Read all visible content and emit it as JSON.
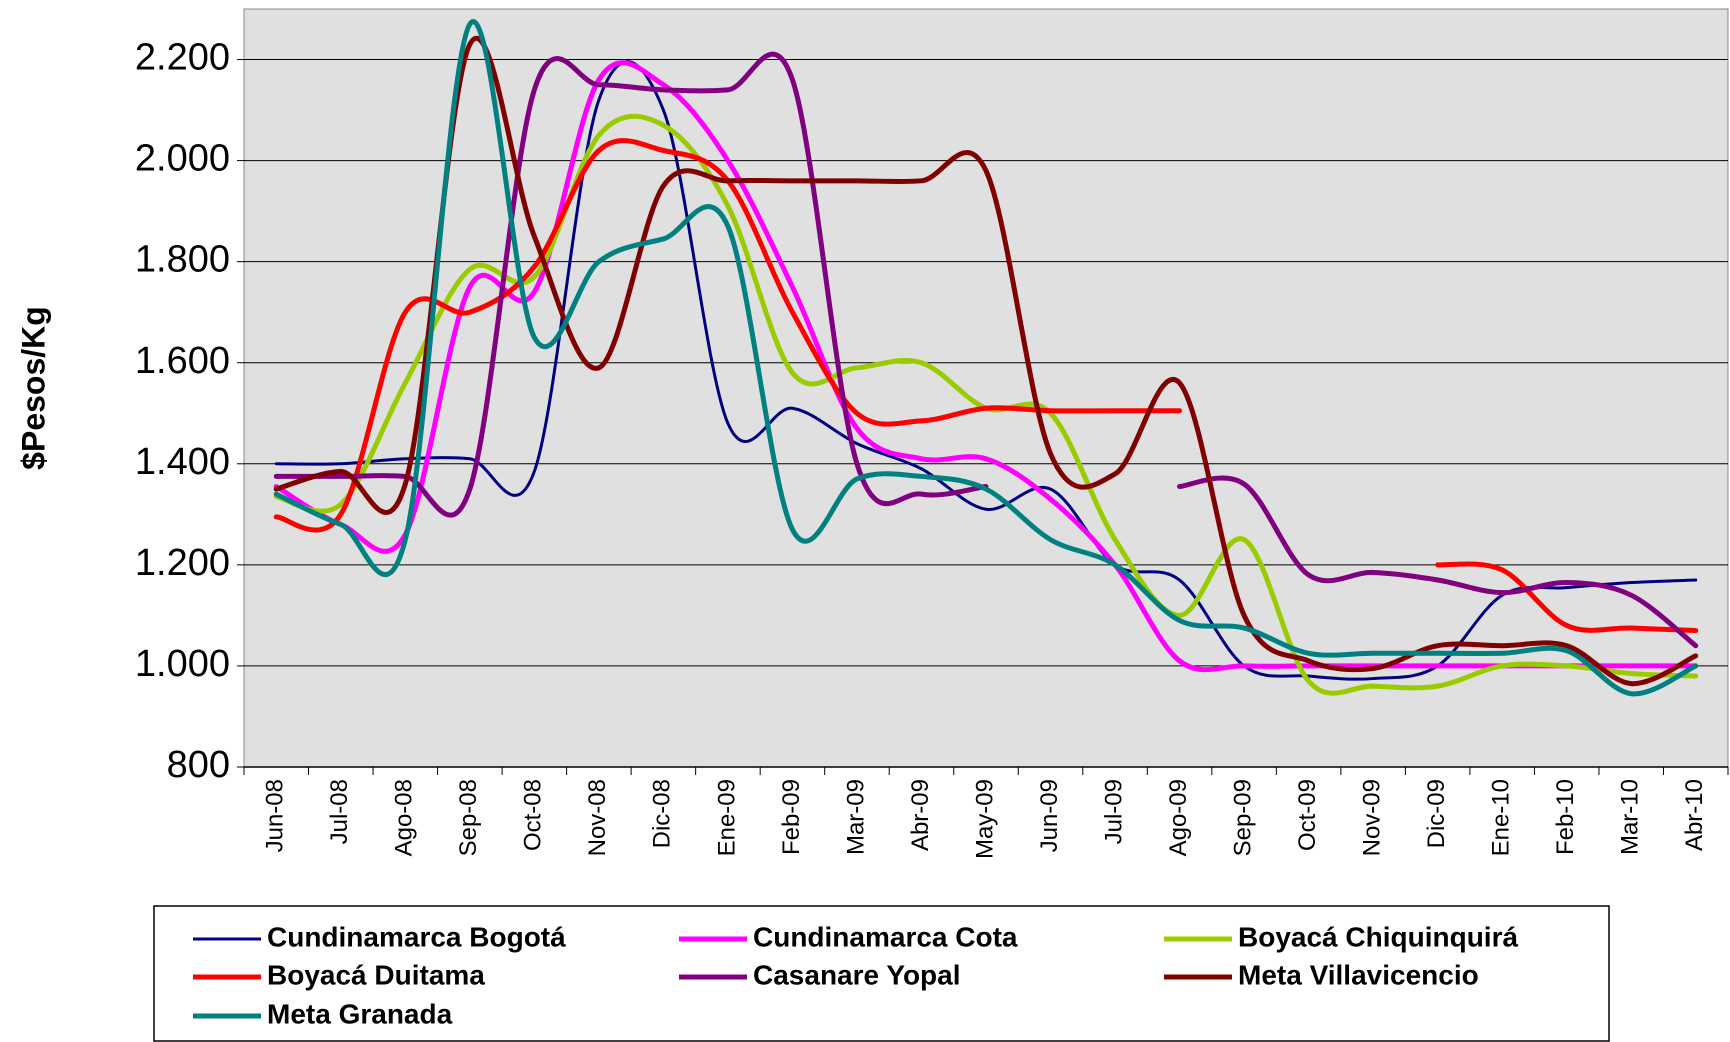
{
  "chart_data": {
    "type": "line",
    "ylabel": "$Pesos/Kg",
    "categories": [
      "Jun-08",
      "Jul-08",
      "Ago-08",
      "Sep-08",
      "Oct-08",
      "Nov-08",
      "Dic-08",
      "Ene-09",
      "Feb-09",
      "Mar-09",
      "Abr-09",
      "May-09",
      "Jun-09",
      "Jul-09",
      "Ago-09",
      "Sep-09",
      "Oct-09",
      "Nov-09",
      "Dic-09",
      "Ene-10",
      "Feb-10",
      "Mar-10",
      "Abr-10"
    ],
    "series": [
      {
        "name": "Cundinamarca Bogotá",
        "color": "#000080",
        "values": [
          1400,
          1400,
          1410,
          1410,
          1385,
          2120,
          2100,
          1480,
          1510,
          1440,
          1390,
          1310,
          1350,
          1200,
          1170,
          1000,
          980,
          975,
          1000,
          1140,
          1155,
          1165,
          1170
        ]
      },
      {
        "name": "Cundinamarca Cota",
        "color": "#ff00ff",
        "values": [
          1355,
          1280,
          1260,
          1750,
          1740,
          2160,
          2150,
          2000,
          1750,
          1470,
          1410,
          1410,
          1330,
          1200,
          1010,
          1000,
          1000,
          1000,
          1000,
          1000,
          1000,
          1000,
          1000
        ]
      },
      {
        "name": "Boyacá Chiquinquirá",
        "color": "#99cc00",
        "values": [
          1335,
          1320,
          1560,
          1785,
          1770,
          2050,
          2070,
          1910,
          1580,
          1590,
          1600,
          1510,
          1500,
          1250,
          1100,
          1250,
          970,
          960,
          960,
          1000,
          1000,
          985,
          980
        ]
      },
      {
        "name": "Boyacá Duitama",
        "color": "#ff0000",
        "values": [
          1295,
          1300,
          1700,
          1700,
          1790,
          2020,
          2020,
          1960,
          1700,
          1500,
          1485,
          1510,
          1505,
          1505,
          1505,
          null,
          null,
          null,
          1200,
          1190,
          1080,
          1075,
          1070
        ]
      },
      {
        "name": "Casanare Yopal",
        "color": "#800080",
        "values": [
          1375,
          1375,
          1375,
          1350,
          2140,
          2150,
          2140,
          2140,
          2160,
          1400,
          1340,
          1355,
          null,
          null,
          1355,
          1360,
          1180,
          1185,
          1170,
          1145,
          1165,
          1140,
          1040
        ]
      },
      {
        "name": "Meta Villavicencio",
        "color": "#800000",
        "values": [
          1350,
          1385,
          1360,
          2230,
          1850,
          1590,
          1950,
          1960,
          1960,
          1960,
          1960,
          1980,
          1420,
          1380,
          1560,
          1100,
          1010,
          995,
          1040,
          1040,
          1040,
          965,
          1020
        ]
      },
      {
        "name": "Meta Granada",
        "color": "#008080",
        "values": [
          1340,
          1280,
          1250,
          2270,
          1650,
          1800,
          1845,
          1870,
          1270,
          1370,
          1375,
          1350,
          1250,
          1200,
          1090,
          1075,
          1025,
          1025,
          1025,
          1025,
          1030,
          945,
          1000
        ]
      }
    ],
    "ylim": [
      800,
      2300
    ],
    "yticks": [
      {
        "value": 800,
        "label": "800"
      },
      {
        "value": 1000,
        "label": "1.000"
      },
      {
        "value": 1200,
        "label": "1.200"
      },
      {
        "value": 1400,
        "label": "1.400"
      },
      {
        "value": 1600,
        "label": "1.600"
      },
      {
        "value": 1800,
        "label": "1.800"
      },
      {
        "value": 2000,
        "label": "2.000"
      },
      {
        "value": 2200,
        "label": "2.200"
      }
    ],
    "grid": true,
    "legend": "bottom"
  }
}
